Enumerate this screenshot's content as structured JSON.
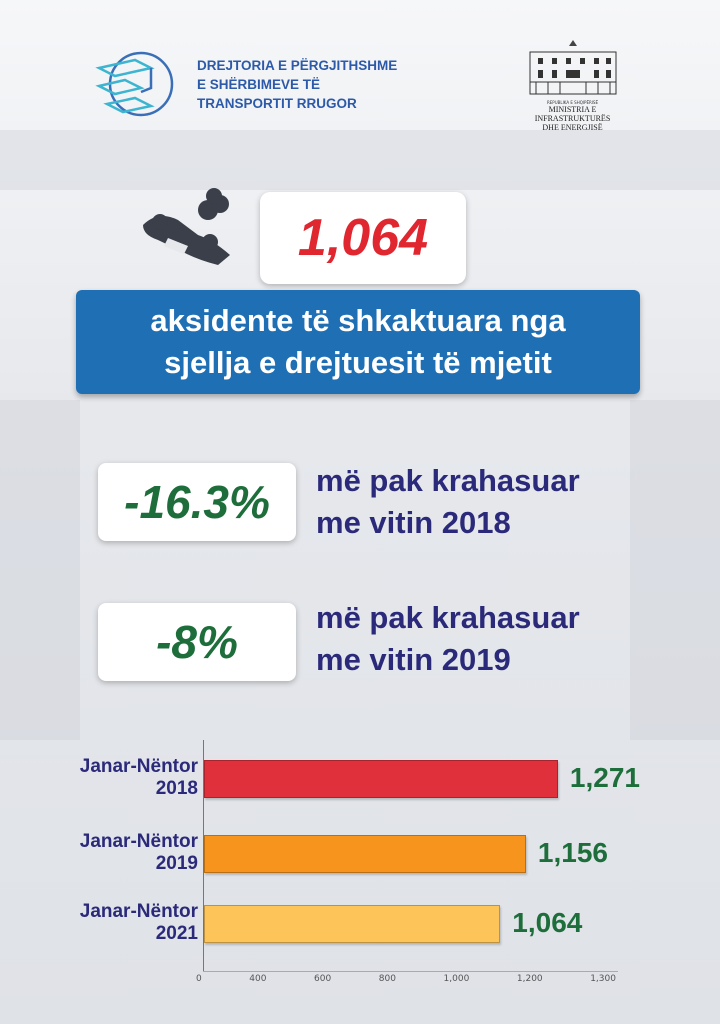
{
  "header": {
    "org_lines": [
      "DREJTORIA E PËRGJITHSHME",
      "E SHËRBIMEVE TË",
      "TRANSPORTIT RRUGOR"
    ],
    "ministry_small": "REPUBLIKA E SHQIPËRISË",
    "ministry_lines": [
      "MINISTRIA E INFRASTRUKTURËS",
      "DHE ENERGJISË"
    ]
  },
  "headline": {
    "number": "1,064",
    "lines": [
      "aksidente të shkaktuara nga",
      "sjellja e drejtuesit të mjetit"
    ]
  },
  "stats": [
    {
      "value": "-16.3%",
      "lines": [
        "më pak krahasuar",
        "me vitin 2018"
      ]
    },
    {
      "value": "-8%",
      "lines": [
        "më pak krahasuar",
        "me vitin 2019"
      ]
    }
  ],
  "colors": {
    "blue": "#1f6fb5",
    "red": "#e0262f",
    "green": "#1d6e3a",
    "navy": "#2b2a7a"
  },
  "chart_data": {
    "type": "bar",
    "orientation": "horizontal",
    "categories": [
      [
        "Janar-Nëntor",
        "2018"
      ],
      [
        "Janar-Nëntor",
        "2019"
      ],
      [
        "Janar-Nëntor",
        "2021"
      ]
    ],
    "values": [
      1271,
      1156,
      1064
    ],
    "value_labels": [
      "1,271",
      "1,156",
      "1,064"
    ],
    "bar_colors": [
      "#e0303c",
      "#f7941d",
      "#fdc45a"
    ],
    "x_ticks": [
      "0",
      "400",
      "600",
      "800",
      "1,000",
      "1,200",
      "1,300"
    ],
    "xlim": [
      0,
      1300
    ],
    "title": "",
    "xlabel": "",
    "ylabel": ""
  }
}
